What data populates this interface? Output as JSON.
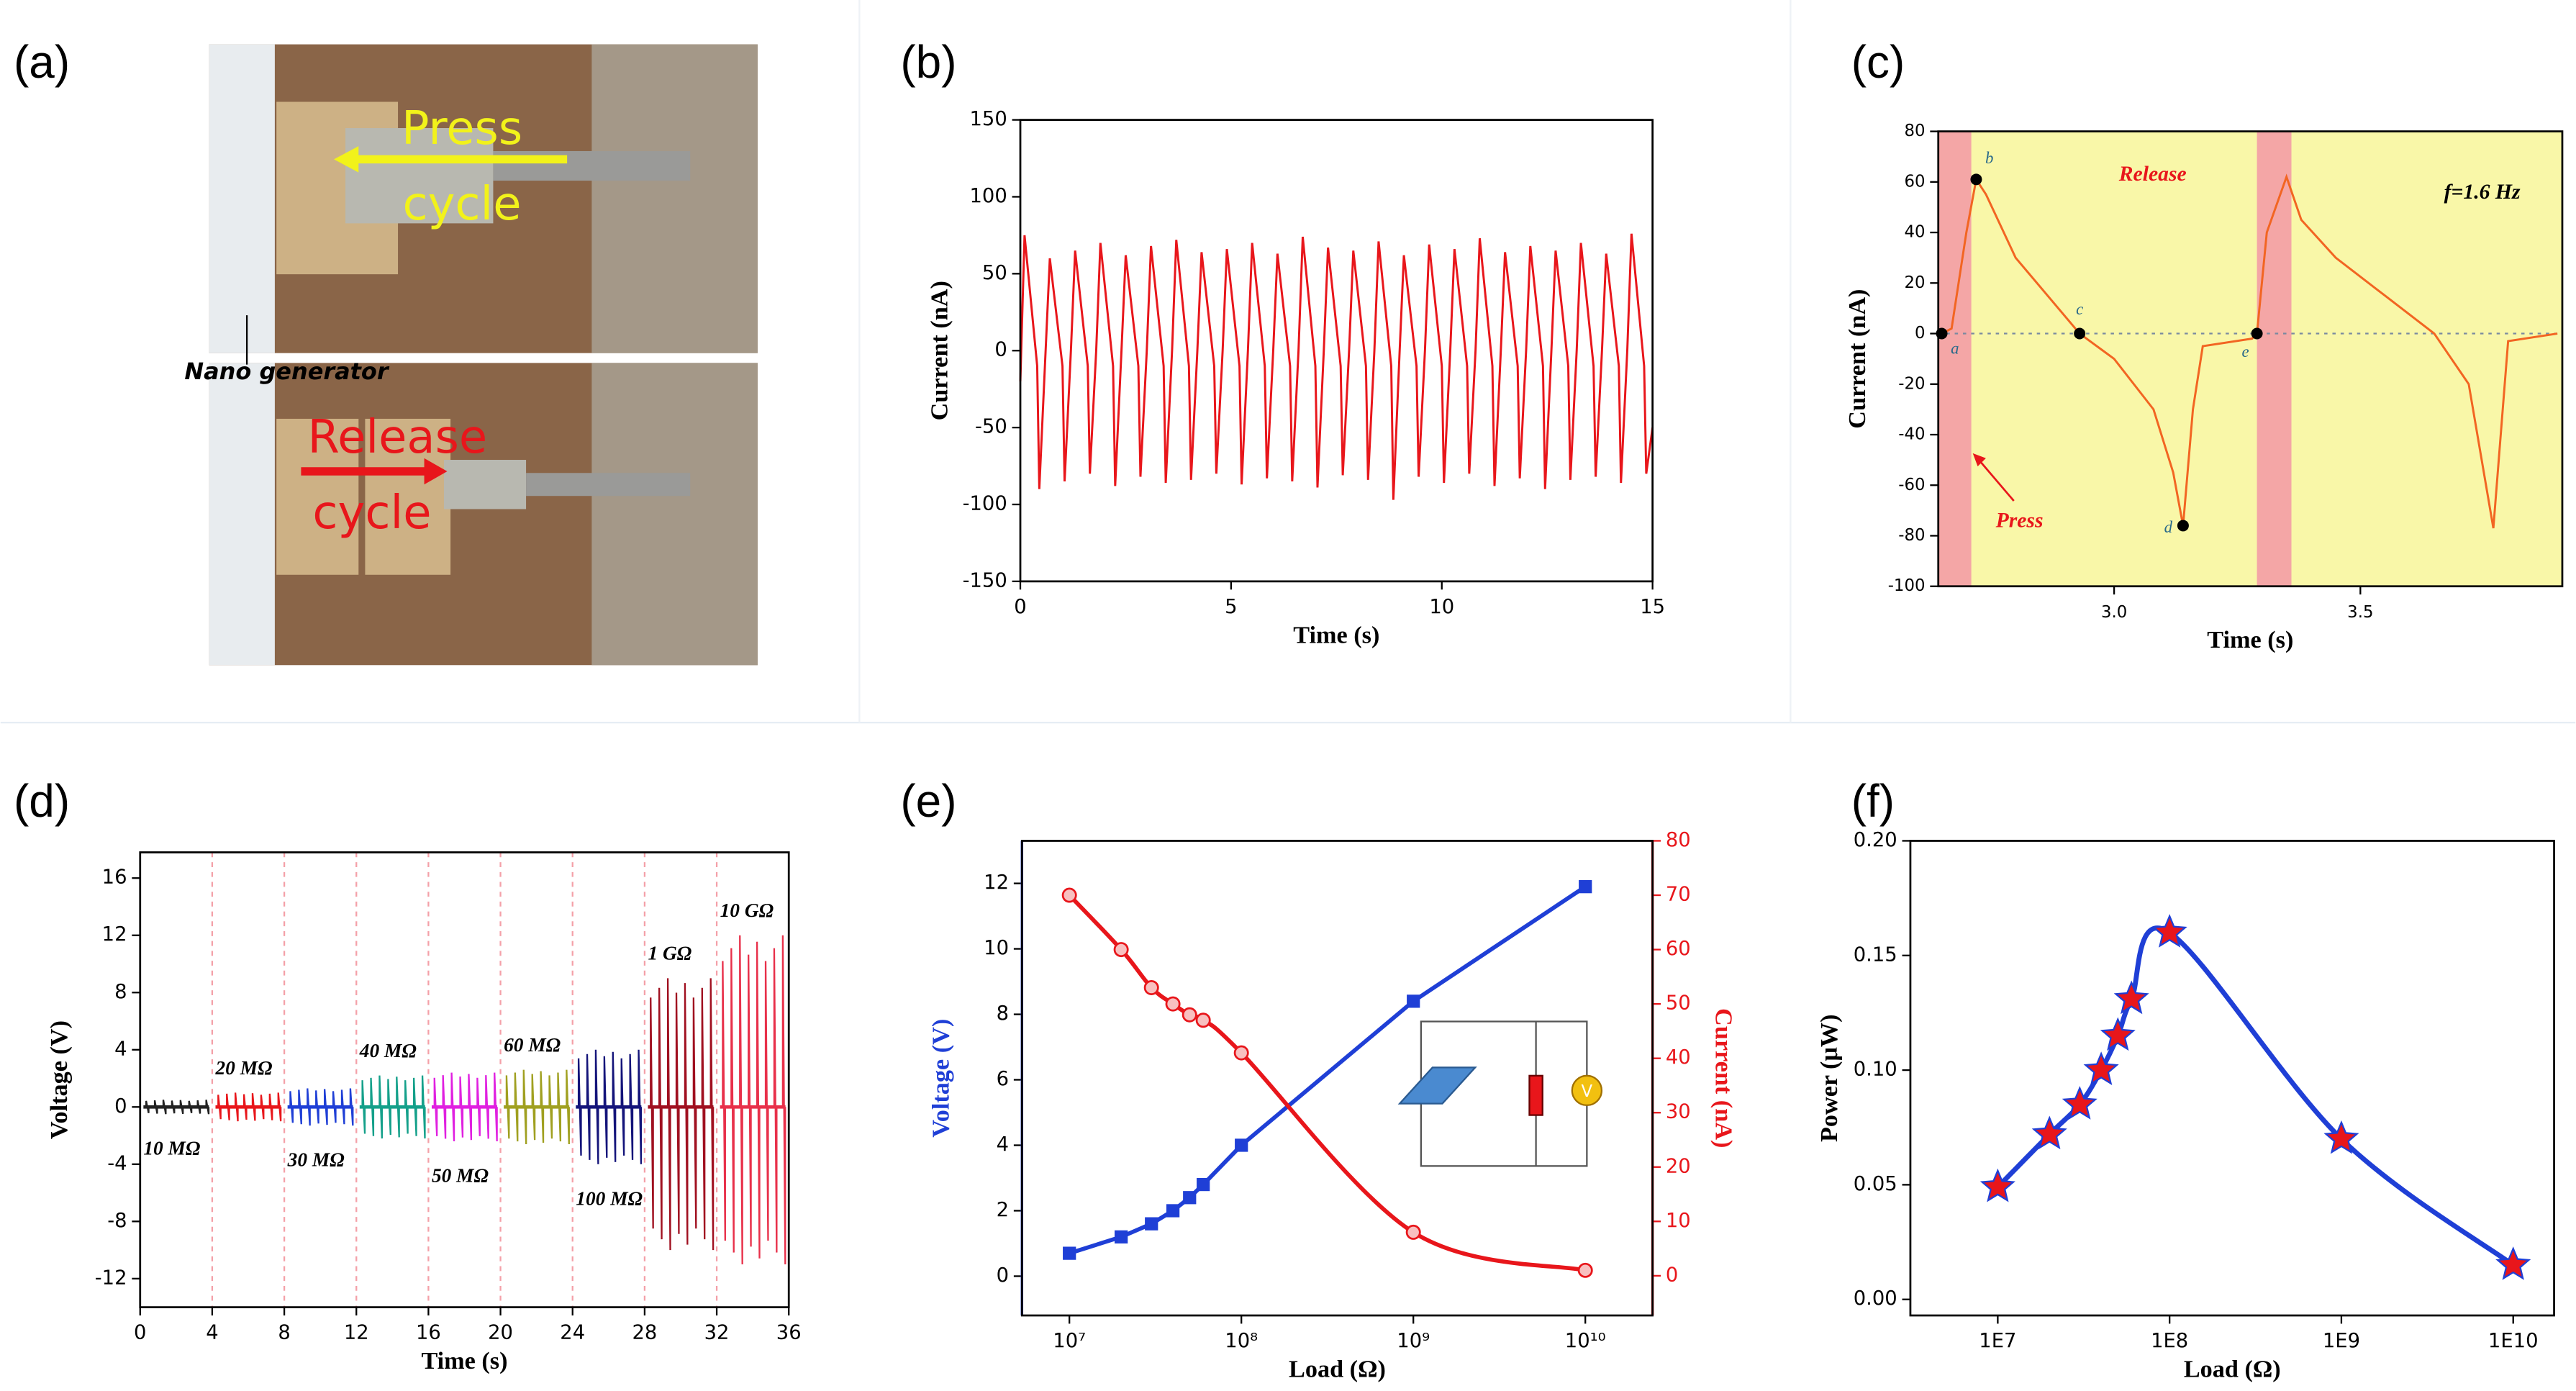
{
  "photo": {
    "panel_label": "(a)",
    "press_label": [
      "Press",
      "cycle"
    ],
    "release_label": [
      "Release",
      "cycle"
    ],
    "device_label": "Nano generator"
  },
  "chart_data": [
    {
      "type": "line",
      "panel_label": "(b)",
      "x_label": "Time (s)",
      "y_label": "Current (nA)",
      "xlim": [
        0,
        15
      ],
      "xticks": [
        0,
        5,
        10,
        15
      ],
      "ylim": [
        -150,
        150
      ],
      "yticks": [
        -150,
        -100,
        -50,
        0,
        50,
        100,
        150
      ],
      "series": [
        {
          "color": "#e8161b",
          "x": [
            0,
            0.1,
            0.4,
            0.45,
            0.6,
            0.7,
            1.0,
            1.05,
            1.2,
            1.3,
            1.6,
            1.65,
            1.8,
            1.9,
            2.2,
            2.25,
            2.4,
            2.5,
            2.8,
            2.85,
            3.0,
            3.1,
            3.4,
            3.45,
            3.6,
            3.7,
            4.0,
            4.05,
            4.2,
            4.3,
            4.6,
            4.65,
            4.8,
            4.9,
            5.2,
            5.25,
            5.4,
            5.5,
            5.8,
            5.85,
            6.0,
            6.1,
            6.4,
            6.45,
            6.6,
            6.7,
            7.0,
            7.05,
            7.2,
            7.3,
            7.6,
            7.65,
            7.8,
            7.9,
            8.2,
            8.25,
            8.4,
            8.5,
            8.8,
            8.85,
            9.0,
            9.1,
            9.4,
            9.45,
            9.6,
            9.7,
            10.0,
            10.05,
            10.2,
            10.3,
            10.6,
            10.65,
            10.8,
            10.9,
            11.2,
            11.25,
            11.4,
            11.5,
            11.8,
            11.85,
            12.0,
            12.1,
            12.4,
            12.45,
            12.6,
            12.7,
            13.0,
            13.05,
            13.2,
            13.3,
            13.6,
            13.65,
            13.8,
            13.9,
            14.2,
            14.25,
            14.4,
            14.5,
            14.8,
            14.85,
            15
          ],
          "values": [
            -20,
            75,
            -10,
            -90,
            0,
            60,
            -10,
            -85,
            0,
            65,
            -10,
            -80,
            0,
            70,
            -10,
            -88,
            0,
            62,
            -10,
            -82,
            0,
            68,
            -10,
            -86,
            0,
            72,
            -10,
            -84,
            0,
            64,
            -10,
            -80,
            0,
            66,
            -10,
            -87,
            0,
            70,
            -10,
            -83,
            0,
            63,
            -10,
            -85,
            0,
            74,
            -10,
            -89,
            0,
            67,
            -10,
            -81,
            0,
            65,
            -10,
            -84,
            0,
            71,
            -10,
            -97,
            0,
            62,
            -10,
            -82,
            0,
            69,
            -10,
            -86,
            0,
            66,
            -10,
            -80,
            0,
            73,
            -10,
            -88,
            0,
            64,
            -10,
            -83,
            0,
            68,
            -10,
            -90,
            0,
            65,
            -10,
            -84,
            0,
            70,
            -10,
            -82,
            0,
            63,
            -10,
            -86,
            0,
            76,
            -10,
            -80,
            -50
          ]
        }
      ]
    },
    {
      "type": "line",
      "panel_label": "(c)",
      "x_label": "Time (s)",
      "y_label": "Current (nA)",
      "xlim": [
        2.643,
        3.91
      ],
      "xticks": [
        {
          "value": 3,
          "label": "3.0"
        },
        {
          "value": 3.5,
          "label": "3.5"
        }
      ],
      "ylim": [
        -100,
        80
      ],
      "yticks": [
        -100,
        -80,
        -60,
        -40,
        -20,
        0,
        20,
        40,
        60,
        80
      ],
      "background": "#f9f7a8",
      "shade_color": "#f4a6a6",
      "shaded_x": [
        [
          2.643,
          2.71
        ],
        [
          3.29,
          3.36
        ]
      ],
      "zero_line": true,
      "series": [
        {
          "color": "#f26522",
          "x": [
            2.65,
            2.67,
            2.7,
            2.72,
            2.74,
            2.8,
            2.93,
            3.0,
            3.08,
            3.12,
            3.14,
            3.16,
            3.18,
            3.28,
            3.29,
            3.31,
            3.35,
            3.38,
            3.45,
            3.55,
            3.65,
            3.72,
            3.77,
            3.8,
            3.9
          ],
          "values": [
            0,
            2,
            40,
            61,
            55,
            30,
            0,
            -10,
            -30,
            -55,
            -76,
            -30,
            -5,
            -2,
            0,
            40,
            62,
            45,
            30,
            15,
            0,
            -20,
            -77,
            -3,
            0
          ]
        }
      ],
      "points": {
        "labels": [
          "a",
          "b",
          "c",
          "d",
          "e"
        ],
        "x": [
          2.65,
          2.72,
          2.93,
          3.14,
          3.29
        ],
        "y": [
          0,
          61,
          0,
          -76,
          0
        ]
      },
      "annotations": [
        "Release",
        "Press",
        "f=1.6 Hz"
      ]
    },
    {
      "type": "spikes",
      "panel_label": "(d)",
      "x_label": "Time (s)",
      "y_label": "Voltage (V)",
      "xlim": [
        0,
        36
      ],
      "xticks": [
        0,
        4,
        8,
        12,
        16,
        20,
        24,
        28,
        32,
        36
      ],
      "ylim": [
        -14,
        17.8
      ],
      "yticks": [
        -12,
        -8,
        -4,
        0,
        4,
        8,
        12,
        16
      ],
      "series": [
        {
          "name": "10 MΩ",
          "color": "#222222",
          "start": 0,
          "end": 4,
          "values": [
            0.5,
            -0.5
          ]
        },
        {
          "name": "20 MΩ",
          "color": "#e8161b",
          "start": 4,
          "end": 8,
          "values": [
            1,
            -1
          ]
        },
        {
          "name": "30 MΩ",
          "color": "#1f3fd6",
          "start": 8,
          "end": 12,
          "values": [
            1.3,
            -1.3
          ]
        },
        {
          "name": "40 MΩ",
          "color": "#14a08a",
          "start": 12,
          "end": 16,
          "values": [
            2.2,
            -2.2
          ]
        },
        {
          "name": "50 MΩ",
          "color": "#e020e0",
          "start": 16,
          "end": 20,
          "values": [
            2.4,
            -2.4
          ]
        },
        {
          "name": "60 MΩ",
          "color": "#a0a020",
          "start": 20,
          "end": 24,
          "values": [
            2.6,
            -2.6
          ]
        },
        {
          "name": "100 MΩ",
          "color": "#14147a",
          "start": 24,
          "end": 28,
          "values": [
            4,
            -4
          ]
        },
        {
          "name": "1 GΩ",
          "color": "#a01020",
          "start": 28,
          "end": 32,
          "values": [
            9,
            -10
          ]
        },
        {
          "name": "10 GΩ",
          "color": "#e8304a",
          "start": 32,
          "end": 36,
          "values": [
            12,
            -11
          ]
        }
      ]
    },
    {
      "type": "line",
      "panel_label": "(e)",
      "x_label": "Load (Ω)",
      "y_label": "Voltage (V)",
      "y2_label": "Current (nA)",
      "xlog": true,
      "xlim": [
        5300000,
        24600000000
      ],
      "xticks": [
        {
          "value": 10000000,
          "label": "10⁷"
        },
        {
          "value": 100000000,
          "label": "10⁸"
        },
        {
          "value": 1000000000,
          "label": "10⁹"
        },
        {
          "value": 10000000000,
          "label": "10¹⁰"
        }
      ],
      "ylim": [
        -1.2,
        13.3
      ],
      "yticks": [
        0,
        2,
        4,
        6,
        8,
        10,
        12
      ],
      "y2lim": [
        -7.3,
        80
      ],
      "y2ticks": [
        0,
        10,
        20,
        30,
        40,
        50,
        60,
        70,
        80
      ],
      "y_color": "#1f3fd6",
      "y2_color": "#e8161b",
      "inset_label": "V",
      "x": [
        10000000,
        20000000,
        30000000,
        40000000,
        50000000,
        60000000,
        100000000,
        1000000000,
        10000000000
      ],
      "series": [
        {
          "color": "#1f3fd6",
          "marker": "square",
          "values": [
            0.7,
            1.2,
            1.6,
            2.0,
            2.4,
            2.8,
            4.0,
            8.4,
            11.9
          ]
        },
        {
          "color": "#e8161b",
          "marker": "circle",
          "axis": "y2",
          "smooth": true,
          "values": [
            70,
            60,
            53,
            50,
            48,
            47,
            41,
            8,
            1
          ]
        }
      ]
    },
    {
      "type": "scatter",
      "panel_label": "(f)",
      "x_label": "Load (Ω)",
      "y_label": "Power (μW)",
      "xlog": true,
      "xlim": [
        3100000,
        17300000000
      ],
      "xticks": [
        {
          "value": 10000000,
          "label": "1E7"
        },
        {
          "value": 100000000,
          "label": "1E8"
        },
        {
          "value": 1000000000,
          "label": "1E9"
        },
        {
          "value": 10000000000,
          "label": "1E10"
        }
      ],
      "ylim": [
        -0.007,
        0.2
      ],
      "yticks": [
        {
          "value": 0,
          "label": "0.00"
        },
        {
          "value": 0.05,
          "label": "0.05"
        },
        {
          "value": 0.1,
          "label": "0.10"
        },
        {
          "value": 0.15,
          "label": "0.15"
        },
        {
          "value": 0.2,
          "label": "0.20"
        }
      ],
      "curve_color": "#1f3fd6",
      "color": "#e8161b",
      "x": [
        10000000,
        20000000,
        30000000,
        40000000,
        50000000,
        60000000,
        100000000,
        1000000000,
        10000000000
      ],
      "values": [
        0.049,
        0.072,
        0.085,
        0.1,
        0.115,
        0.131,
        0.16,
        0.07,
        0.015
      ]
    }
  ]
}
